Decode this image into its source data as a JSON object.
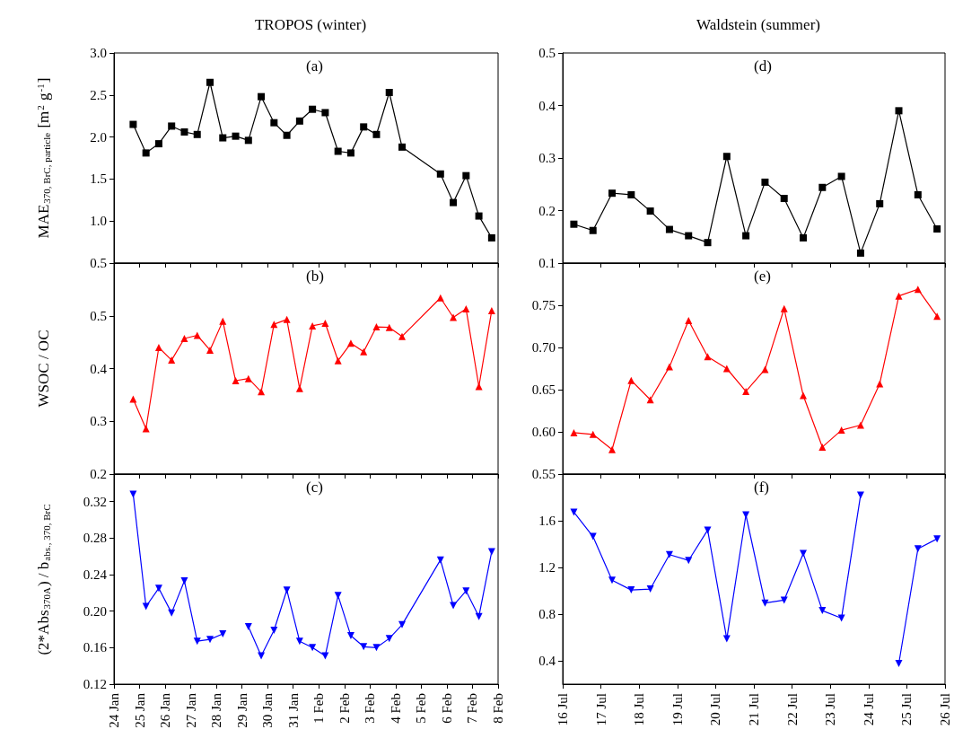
{
  "chart_data": [
    {
      "type": "line",
      "title": "TROPOS (winter)",
      "ylabel": "MAE$_{370, BrC, particle}$ [m$^{2}$ g$^{-1}$]",
      "annotations": [
        "(a)"
      ],
      "marker": "square",
      "tick_labels": "y",
      "x": [
        "--01-24T18:00",
        "--01-25T06:00",
        "--01-25T18:00",
        "--01-26T06:00",
        "--01-26T18:00",
        "--01-27T06:00",
        "--01-27T18:00",
        "--01-28T06:00",
        "--01-28T18:00",
        "--01-29T06:00",
        "--01-29T18:00",
        "--01-30T06:00",
        "--01-30T18:00",
        "--01-31T06:00",
        "--01-31T18:00",
        "--02-01T06:00",
        "--02-01T18:00",
        "--02-02T06:00",
        "--02-02T18:00",
        "--02-03T06:00",
        "--02-03T18:00",
        "--02-04T06:00",
        "--02-05T18:00",
        "--02-06T06:00",
        "--02-06T18:00",
        "--02-07T06:00",
        "--02-07T18:00"
      ],
      "series": [
        {
          "color": "#000000",
          "values": [
            2.15,
            1.81,
            1.92,
            2.13,
            2.06,
            2.03,
            2.65,
            1.99,
            2.01,
            1.96,
            2.48,
            2.17,
            2.02,
            2.19,
            2.33,
            2.29,
            1.83,
            1.81,
            2.12,
            2.03,
            2.53,
            1.88,
            1.56,
            1.22,
            1.54,
            1.06,
            0.8
          ]
        }
      ],
      "xlim": [
        "--01-24",
        "--02-08"
      ],
      "xticks": [
        {
          "value": "--01-24",
          "label": "24 Jan"
        },
        {
          "value": "--01-25",
          "label": "25 Jan"
        },
        {
          "value": "--01-26",
          "label": "26 Jan"
        },
        {
          "value": "--01-27",
          "label": "27 Jan"
        },
        {
          "value": "--01-28",
          "label": "28 Jan"
        },
        {
          "value": "--01-29",
          "label": "29 Jan"
        },
        {
          "value": "--01-30",
          "label": "30 Jan"
        },
        {
          "value": "--01-31",
          "label": "31 Jan"
        },
        {
          "value": "--02-01",
          "label": "1 Feb"
        },
        {
          "value": "--02-02",
          "label": "2 Feb"
        },
        {
          "value": "--02-03",
          "label": "3 Feb"
        },
        {
          "value": "--02-04",
          "label": "4 Feb"
        },
        {
          "value": "--02-05",
          "label": "5 Feb"
        },
        {
          "value": "--02-06",
          "label": "6 Feb"
        },
        {
          "value": "--02-07",
          "label": "7 Feb"
        },
        {
          "value": "--02-08",
          "label": "8 Feb"
        }
      ],
      "ylim": [
        0.5,
        3.0
      ],
      "yticks": [
        0.5,
        {
          "value": 1,
          "label": "1.0"
        },
        1.5,
        {
          "value": 2,
          "label": "2.0"
        },
        2.5,
        {
          "value": 3,
          "label": "3.0"
        }
      ]
    },
    {
      "type": "line",
      "title": "Waldstein (summer)",
      "annotations": [
        "(d)"
      ],
      "marker": "square",
      "tick_labels": "y",
      "x": [
        "--07-16T07:00",
        "--07-16T19:00",
        "--07-17T07:00",
        "--07-17T19:00",
        "--07-18T07:00",
        "--07-18T19:00",
        "--07-19T07:00",
        "--07-19T19:00",
        "--07-20T07:00",
        "--07-20T19:00",
        "--07-21T07:00",
        "--07-21T19:00",
        "--07-22T07:00",
        "--07-22T19:00",
        "--07-23T07:00",
        "--07-23T19:00",
        "--07-24T07:00",
        "--07-24T19:00",
        "--07-25T07:00",
        "--07-25T19:00"
      ],
      "series": [
        {
          "color": "#000000",
          "values": [
            0.174,
            0.162,
            0.233,
            0.23,
            0.199,
            0.164,
            0.152,
            0.139,
            0.303,
            0.152,
            0.254,
            0.223,
            0.148,
            0.244,
            0.265,
            0.119,
            0.213,
            0.39,
            0.23,
            0.165
          ]
        }
      ],
      "xlim": [
        "--07-16",
        "--07-26"
      ],
      "xticks": [
        {
          "value": "--07-16",
          "label": "16 Jul"
        },
        {
          "value": "--07-17",
          "label": "17 Jul"
        },
        {
          "value": "--07-18",
          "label": "18 Jul"
        },
        {
          "value": "--07-19",
          "label": "19 Jul"
        },
        {
          "value": "--07-20",
          "label": "20 Jul"
        },
        {
          "value": "--07-21",
          "label": "21 Jul"
        },
        {
          "value": "--07-22",
          "label": "22 Jul"
        },
        {
          "value": "--07-23",
          "label": "23 Jul"
        },
        {
          "value": "--07-24",
          "label": "24 Jul"
        },
        {
          "value": "--07-25",
          "label": "25 Jul"
        },
        {
          "value": "--07-26",
          "label": "26 Jul"
        }
      ],
      "ylim": [
        0.1,
        0.5
      ],
      "yticks": [
        0.1,
        0.2,
        0.3,
        0.4,
        0.5
      ]
    },
    {
      "type": "line",
      "ylabel": "WSOC / OC",
      "annotations": [
        "(b)"
      ],
      "marker": "triangle",
      "tick_labels": "y",
      "x": [
        "--01-24T18:00",
        "--01-25T06:00",
        "--01-25T18:00",
        "--01-26T06:00",
        "--01-26T18:00",
        "--01-27T06:00",
        "--01-27T18:00",
        "--01-28T06:00",
        "--01-28T18:00",
        "--01-29T06:00",
        "--01-29T18:00",
        "--01-30T06:00",
        "--01-30T18:00",
        "--01-31T06:00",
        "--01-31T18:00",
        "--02-01T06:00",
        "--02-01T18:00",
        "--02-02T06:00",
        "--02-02T18:00",
        "--02-03T06:00",
        "--02-03T18:00",
        "--02-04T06:00",
        "--02-05T18:00",
        "--02-06T06:00",
        "--02-06T18:00",
        "--02-07T06:00",
        "--02-07T18:00"
      ],
      "series": [
        {
          "color": "#ff0000",
          "values": [
            0.342,
            0.286,
            0.44,
            0.416,
            0.457,
            0.463,
            0.435,
            0.49,
            0.377,
            0.381,
            0.356,
            0.484,
            0.493,
            0.362,
            0.481,
            0.486,
            0.415,
            0.448,
            0.432,
            0.479,
            0.478,
            0.461,
            0.534,
            0.497,
            0.513,
            0.366,
            0.51
          ]
        }
      ],
      "xlim": [
        "--01-24",
        "--02-08"
      ],
      "xticks": [
        {
          "value": "--01-24",
          "label": "24 Jan"
        },
        {
          "value": "--01-25",
          "label": "25 Jan"
        },
        {
          "value": "--01-26",
          "label": "26 Jan"
        },
        {
          "value": "--01-27",
          "label": "27 Jan"
        },
        {
          "value": "--01-28",
          "label": "28 Jan"
        },
        {
          "value": "--01-29",
          "label": "29 Jan"
        },
        {
          "value": "--01-30",
          "label": "30 Jan"
        },
        {
          "value": "--01-31",
          "label": "31 Jan"
        },
        {
          "value": "--02-01",
          "label": "1 Feb"
        },
        {
          "value": "--02-02",
          "label": "2 Feb"
        },
        {
          "value": "--02-03",
          "label": "3 Feb"
        },
        {
          "value": "--02-04",
          "label": "4 Feb"
        },
        {
          "value": "--02-05",
          "label": "5 Feb"
        },
        {
          "value": "--02-06",
          "label": "6 Feb"
        },
        {
          "value": "--02-07",
          "label": "7 Feb"
        },
        {
          "value": "--02-08",
          "label": "8 Feb"
        }
      ],
      "ylim": [
        0.2,
        0.6
      ],
      "yticks": [
        0.2,
        0.3,
        0.4,
        0.5
      ]
    },
    {
      "type": "line",
      "annotations": [
        "(e)"
      ],
      "marker": "triangle",
      "tick_labels": "y",
      "x": [
        "--07-16T07:00",
        "--07-16T19:00",
        "--07-17T07:00",
        "--07-17T19:00",
        "--07-18T07:00",
        "--07-18T19:00",
        "--07-19T07:00",
        "--07-19T19:00",
        "--07-20T07:00",
        "--07-20T19:00",
        "--07-21T07:00",
        "--07-21T19:00",
        "--07-22T07:00",
        "--07-22T19:00",
        "--07-23T07:00",
        "--07-23T19:00",
        "--07-24T07:00",
        "--07-24T19:00",
        "--07-25T07:00",
        "--07-25T19:00"
      ],
      "series": [
        {
          "color": "#ff0000",
          "values": [
            0.599,
            0.597,
            0.579,
            0.661,
            0.638,
            0.677,
            0.732,
            0.689,
            0.675,
            0.648,
            0.674,
            0.746,
            0.643,
            0.582,
            0.602,
            0.608,
            0.657,
            0.761,
            0.769,
            0.737
          ]
        }
      ],
      "xlim": [
        "--07-16",
        "--07-26"
      ],
      "xticks": [
        {
          "value": "--07-16",
          "label": "16 Jul"
        },
        {
          "value": "--07-17",
          "label": "17 Jul"
        },
        {
          "value": "--07-18",
          "label": "18 Jul"
        },
        {
          "value": "--07-19",
          "label": "19 Jul"
        },
        {
          "value": "--07-20",
          "label": "20 Jul"
        },
        {
          "value": "--07-21",
          "label": "21 Jul"
        },
        {
          "value": "--07-22",
          "label": "22 Jul"
        },
        {
          "value": "--07-23",
          "label": "23 Jul"
        },
        {
          "value": "--07-24",
          "label": "24 Jul"
        },
        {
          "value": "--07-25",
          "label": "25 Jul"
        },
        {
          "value": "--07-26",
          "label": "26 Jul"
        }
      ],
      "ylim": [
        0.55,
        0.8
      ],
      "yticks": [
        0.55,
        {
          "value": 0.6,
          "label": "0.60"
        },
        0.65,
        {
          "value": 0.7,
          "label": "0.70"
        },
        0.75
      ]
    },
    {
      "type": "line",
      "ylabel": "(2*Abs$_{370A}$) / b$_{abs., 370, BrC}$",
      "annotations": [
        "(c)"
      ],
      "marker": "triangle_down",
      "x": [
        "--01-24T18:00",
        "--01-25T06:00",
        "--01-25T18:00",
        "--01-26T06:00",
        "--01-26T18:00",
        "--01-27T06:00",
        "--01-27T18:00",
        "--01-28T06:00",
        "--01-28T18:00",
        "--01-29T06:00",
        "--01-29T18:00",
        "--01-30T06:00",
        "--01-30T18:00",
        "--01-31T06:00",
        "--01-31T18:00",
        "--02-01T06:00",
        "--02-01T18:00",
        "--02-02T06:00",
        "--02-02T18:00",
        "--02-03T06:00",
        "--02-03T18:00",
        "--02-04T06:00",
        "--02-05T18:00",
        "--02-06T06:00",
        "--02-06T18:00",
        "--02-07T06:00",
        "--02-07T18:00"
      ],
      "series": [
        {
          "color": "#0000ff",
          "values": [
            0.328,
            0.205,
            0.225,
            0.198,
            0.233,
            0.167,
            0.169,
            0.175,
            null,
            0.183,
            0.151,
            0.179,
            0.223,
            0.167,
            0.16,
            0.151,
            0.217,
            0.173,
            0.161,
            0.16,
            0.17,
            0.185,
            0.256,
            0.206,
            0.222,
            0.194,
            0.265
          ]
        }
      ],
      "xlim": [
        "--01-24",
        "--02-08"
      ],
      "xticks": [
        {
          "value": "--01-24",
          "label": "24 Jan"
        },
        {
          "value": "--01-25",
          "label": "25 Jan"
        },
        {
          "value": "--01-26",
          "label": "26 Jan"
        },
        {
          "value": "--01-27",
          "label": "27 Jan"
        },
        {
          "value": "--01-28",
          "label": "28 Jan"
        },
        {
          "value": "--01-29",
          "label": "29 Jan"
        },
        {
          "value": "--01-30",
          "label": "30 Jan"
        },
        {
          "value": "--01-31",
          "label": "31 Jan"
        },
        {
          "value": "--02-01",
          "label": "1 Feb"
        },
        {
          "value": "--02-02",
          "label": "2 Feb"
        },
        {
          "value": "--02-03",
          "label": "3 Feb"
        },
        {
          "value": "--02-04",
          "label": "4 Feb"
        },
        {
          "value": "--02-05",
          "label": "5 Feb"
        },
        {
          "value": "--02-06",
          "label": "6 Feb"
        },
        {
          "value": "--02-07",
          "label": "7 Feb"
        },
        {
          "value": "--02-08",
          "label": "8 Feb"
        }
      ],
      "ylim": [
        0.12,
        0.35
      ],
      "yticks": [
        0.12,
        0.16,
        {
          "value": 0.2,
          "label": "0.20"
        },
        0.24,
        0.28,
        0.32
      ]
    },
    {
      "type": "line",
      "annotations": [
        "(f)"
      ],
      "marker": "triangle_down",
      "x": [
        "--07-16T07:00",
        "--07-16T19:00",
        "--07-17T07:00",
        "--07-17T19:00",
        "--07-18T07:00",
        "--07-18T19:00",
        "--07-19T07:00",
        "--07-19T19:00",
        "--07-20T07:00",
        "--07-20T19:00",
        "--07-21T07:00",
        "--07-21T19:00",
        "--07-22T07:00",
        "--07-22T19:00",
        "--07-23T07:00",
        "--07-23T19:00",
        "--07-24T07:00",
        "--07-24T19:00",
        "--07-25T07:00",
        "--07-25T19:00"
      ],
      "series": [
        {
          "color": "#0000ff",
          "values": [
            1.674,
            1.465,
            1.09,
            1.007,
            1.015,
            1.31,
            1.26,
            1.52,
            0.588,
            1.65,
            0.895,
            0.92,
            1.32,
            0.83,
            0.765,
            1.82,
            null,
            0.377,
            1.36,
            1.445
          ]
        }
      ],
      "xlim": [
        "--07-16",
        "--07-26"
      ],
      "xticks": [
        {
          "value": "--07-16",
          "label": "16 Jul"
        },
        {
          "value": "--07-17",
          "label": "17 Jul"
        },
        {
          "value": "--07-18",
          "label": "18 Jul"
        },
        {
          "value": "--07-19",
          "label": "19 Jul"
        },
        {
          "value": "--07-20",
          "label": "20 Jul"
        },
        {
          "value": "--07-21",
          "label": "21 Jul"
        },
        {
          "value": "--07-22",
          "label": "22 Jul"
        },
        {
          "value": "--07-23",
          "label": "23 Jul"
        },
        {
          "value": "--07-24",
          "label": "24 Jul"
        },
        {
          "value": "--07-25",
          "label": "25 Jul"
        },
        {
          "value": "--07-26",
          "label": "26 Jul"
        }
      ],
      "ylim": [
        0.2,
        2.0
      ],
      "yticks": [
        0.4,
        0.8,
        1.2,
        1.6
      ]
    }
  ]
}
